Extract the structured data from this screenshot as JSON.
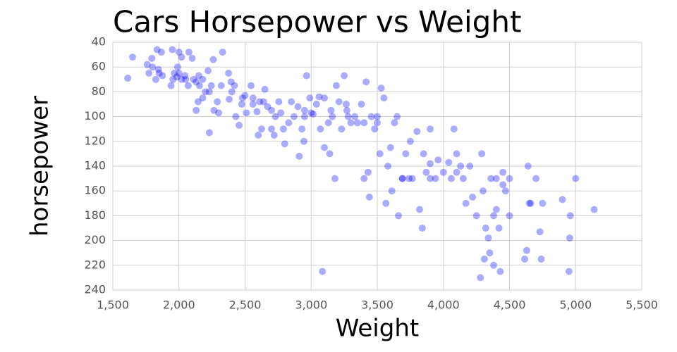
{
  "chart_data": {
    "type": "scatter",
    "title": "Cars Horsepower vs Weight",
    "x_label": "Weight",
    "y_label": "horsepower",
    "color": "#0000ff",
    "opacity": 0.33,
    "grid": true,
    "xlim": [
      1500,
      5500
    ],
    "xticks": [
      {
        "value": 1500,
        "label": "1,500"
      },
      {
        "value": 2000,
        "label": "2,000"
      },
      {
        "value": 2500,
        "label": "2,500"
      },
      {
        "value": 3000,
        "label": "3,000"
      },
      {
        "value": 3500,
        "label": "3,500"
      },
      {
        "value": 4000,
        "label": "4,000"
      },
      {
        "value": 4500,
        "label": "4,500"
      },
      {
        "value": 5000,
        "label": "5,000"
      },
      {
        "value": 5500,
        "label": "5,500"
      }
    ],
    "ylim": [
      240,
      40
    ],
    "yticks": [
      40,
      60,
      80,
      100,
      120,
      140,
      160,
      180,
      200,
      220,
      240
    ],
    "x": [
      1613,
      1649,
      1760,
      1773,
      1795,
      1800,
      1825,
      1835,
      1845,
      1850,
      1867,
      1875,
      1940,
      1950,
      1955,
      1965,
      1985,
      1990,
      2000,
      2020,
      2045,
      2050,
      2075,
      2100,
      2110,
      2130,
      2145,
      2150,
      2155,
      2180,
      2200,
      2220,
      2230,
      2245,
      2260,
      2265,
      2290,
      2300,
      2330,
      2375,
      2380,
      2395,
      2420,
      2430,
      2455,
      2475,
      2500,
      2510,
      2545,
      2560,
      2590,
      2600,
      2610,
      2625,
      2650,
      2670,
      2700,
      2720,
      2730,
      2755,
      2790,
      2800,
      2830,
      2870,
      2900,
      2910,
      2930,
      2945,
      2950,
      2965,
      2990,
      3015,
      3040,
      3060,
      3070,
      3085,
      3100,
      3130,
      3140,
      3160,
      3180,
      3190,
      3210,
      3230,
      3250,
      3265,
      3280,
      3330,
      3350,
      3380,
      3400,
      3415,
      3430,
      3440,
      3455,
      3500,
      3520,
      3530,
      3550,
      3565,
      3580,
      3600,
      3610,
      3650,
      3660,
      3690,
      3715,
      3740,
      3765,
      3800,
      3820,
      3840,
      3850,
      3870,
      3900,
      3940,
      3960,
      4000,
      4040,
      4060,
      4080,
      4100,
      4130,
      4150,
      4170,
      4200,
      4220,
      4250,
      4280,
      4290,
      4310,
      4320,
      4340,
      4360,
      4380,
      4400,
      4420,
      4430,
      4450,
      4470,
      4500,
      4500,
      4615,
      4630,
      4640,
      4660,
      4700,
      4730,
      4740,
      4750,
      4900,
      4950,
      4955,
      4960,
      5000,
      5140,
      4380,
      4350,
      3270,
      3480,
      2130,
      2000,
      2020,
      2070,
      2180,
      2230,
      2320,
      2400,
      2480,
      2560,
      2640,
      2700,
      2770,
      2850,
      2950,
      3000,
      3100,
      3150,
      3300,
      3400,
      3500,
      3630,
      3750,
      3900,
      4100,
      4300,
      4400,
      4450,
      4650,
      3690,
      3900
    ],
    "values": [
      69,
      52,
      58,
      65,
      53,
      60,
      70,
      46,
      62,
      65,
      48,
      67,
      75,
      46,
      70,
      65,
      68,
      60,
      48,
      52,
      67,
      70,
      48,
      53,
      70,
      72,
      88,
      67,
      75,
      70,
      80,
      63,
      113,
      75,
      54,
      95,
      88,
      97,
      48,
      65,
      86,
      72,
      75,
      100,
      107,
      90,
      83,
      97,
      75,
      85,
      96,
      115,
      88,
      110,
      78,
      92,
      110,
      115,
      100,
      88,
      110,
      122,
      105,
      100,
      92,
      132,
      110,
      120,
      95,
      67,
      85,
      98,
      90,
      84,
      110,
      225,
      125,
      105,
      130,
      100,
      150,
      75,
      88,
      110,
      67,
      90,
      100,
      100,
      105,
      90,
      150,
      72,
      145,
      165,
      100,
      105,
      130,
      77,
      85,
      170,
      140,
      125,
      160,
      100,
      180,
      150,
      130,
      150,
      150,
      112,
      175,
      190,
      130,
      145,
      110,
      150,
      135,
      145,
      137,
      150,
      110,
      130,
      140,
      150,
      170,
      140,
      165,
      180,
      230,
      130,
      215,
      190,
      198,
      150,
      220,
      175,
      190,
      225,
      145,
      160,
      150,
      180,
      215,
      208,
      140,
      170,
      150,
      193,
      215,
      170,
      167,
      225,
      198,
      180,
      150,
      175,
      180,
      210,
      95,
      110,
      95,
      65,
      70,
      75,
      85,
      80,
      75,
      80,
      85,
      90,
      88,
      95,
      97,
      88,
      100,
      97,
      85,
      95,
      105,
      105,
      100,
      105,
      120,
      138,
      145,
      160,
      150,
      155,
      170,
      150,
      150
    ]
  }
}
